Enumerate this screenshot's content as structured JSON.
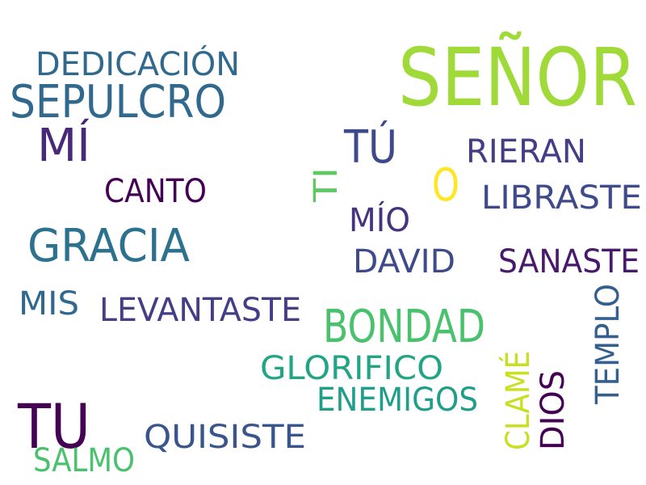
{
  "words": [
    {
      "text": "SEÑOR",
      "color": "#a0da39"
    },
    {
      "text": "DEDICACIÓN",
      "color": "#31688e"
    },
    {
      "text": "SEPULCRO",
      "color": "#31688e"
    },
    {
      "text": "MÍ",
      "color": "#482878"
    },
    {
      "text": "TÚ",
      "color": "#3e4a89"
    },
    {
      "text": "RIERAN",
      "color": "#433e85"
    },
    {
      "text": "O",
      "color": "#fde725"
    },
    {
      "text": "TI",
      "color": "#5ec962"
    },
    {
      "text": "CANTO",
      "color": "#440154"
    },
    {
      "text": "LIBRASTE",
      "color": "#3e4a89"
    },
    {
      "text": "MÍO",
      "color": "#46337e"
    },
    {
      "text": "GRACIA",
      "color": "#2c728e"
    },
    {
      "text": "DAVID",
      "color": "#3e4a89"
    },
    {
      "text": "SANASTE",
      "color": "#481a6c"
    },
    {
      "text": "MIS",
      "color": "#31688e"
    },
    {
      "text": "LEVANTASTE",
      "color": "#433e85"
    },
    {
      "text": "BONDAD",
      "color": "#4ac16d"
    },
    {
      "text": "TEMPLO",
      "color": "#355f8d"
    },
    {
      "text": "GLORIFICO",
      "color": "#21a585"
    },
    {
      "text": "CLAMÉ",
      "color": "#c8e020"
    },
    {
      "text": "ENEMIGOS",
      "color": "#1f9e89"
    },
    {
      "text": "DIOS",
      "color": "#440154"
    },
    {
      "text": "TU",
      "color": "#440154"
    },
    {
      "text": "QUISISTE",
      "color": "#39558c"
    },
    {
      "text": "SALMO",
      "color": "#4ac16d"
    }
  ]
}
